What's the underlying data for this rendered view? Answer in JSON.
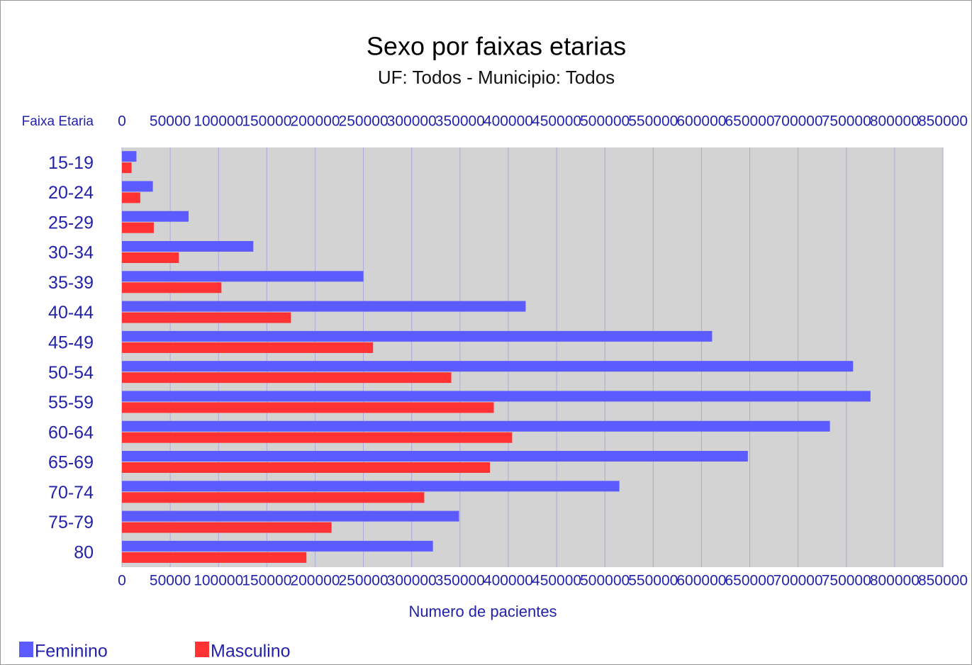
{
  "chart_data": {
    "type": "hbar",
    "title": "Sexo por faixas etarias",
    "subtitle": "UF: Todos - Municipio: Todos",
    "category_axis_label": "Faixa Etaria",
    "x_axis_label": "Numero de pacientes",
    "categories": [
      "15-19",
      "20-24",
      "25-29",
      "30-34",
      "35-39",
      "40-44",
      "45-49",
      "50-54",
      "55-59",
      "60-64",
      "65-69",
      "70-74",
      "75-79",
      "80"
    ],
    "series": [
      {
        "name": "Feminino",
        "color": "#5b5bff",
        "values": [
          15000,
          32000,
          69000,
          136000,
          250000,
          418000,
          611000,
          757000,
          775000,
          733000,
          648000,
          515000,
          349000,
          322000
        ]
      },
      {
        "name": "Masculino",
        "color": "#ff3333",
        "values": [
          10000,
          19000,
          33000,
          59000,
          103000,
          175000,
          260000,
          341000,
          385000,
          404000,
          381000,
          313000,
          217000,
          191000
        ]
      }
    ],
    "xlim": [
      0,
      850000
    ],
    "xticks": [
      0,
      50000,
      100000,
      150000,
      200000,
      250000,
      300000,
      350000,
      400000,
      450000,
      500000,
      550000,
      600000,
      650000,
      700000,
      750000,
      800000,
      850000
    ],
    "grid": true
  }
}
